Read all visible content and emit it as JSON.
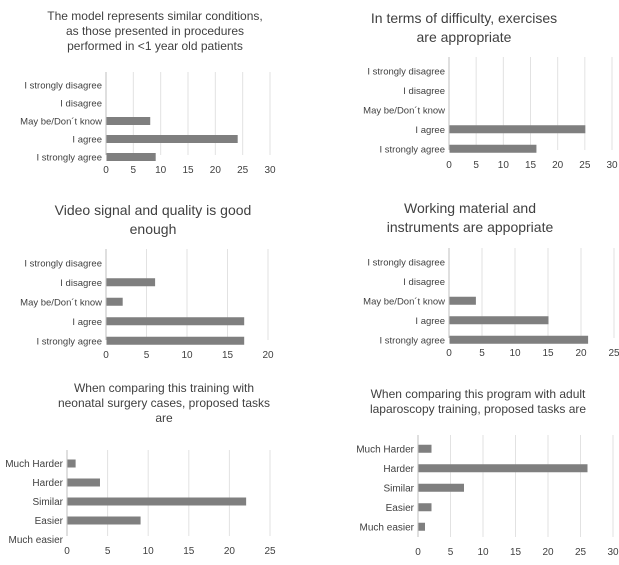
{
  "chart_data": [
    {
      "type": "bar",
      "orientation": "horizontal",
      "title": "The model represents similar conditions, as those presented in procedures performed in <1 year old patients",
      "title_lines": [
        "The model represents similar conditions,",
        "as those presented in procedures",
        "performed in <1 year old patients"
      ],
      "categories": [
        "I strongly disagree",
        "I disagree",
        "May be/Don´t know",
        "I agree",
        "I strongly agree"
      ],
      "values": [
        0,
        0,
        8,
        24,
        9
      ],
      "xlim": [
        0,
        30
      ],
      "xticks": [
        "0",
        "5",
        "10",
        "15",
        "20",
        "25",
        "30"
      ],
      "grid": true,
      "legend": "none",
      "bar_color": "#7f7f7f"
    },
    {
      "type": "bar",
      "orientation": "horizontal",
      "title": "In terms of difficulty, exercises are appropriate",
      "title_lines": [
        "In terms of difficulty, exercises",
        "are appropriate"
      ],
      "categories": [
        "I strongly disagree",
        "I disagree",
        "May be/Don´t know",
        "I agree",
        "I strongly agree"
      ],
      "values": [
        0,
        0,
        0,
        25,
        16
      ],
      "xlim": [
        0,
        30
      ],
      "xticks": [
        "0",
        "5",
        "10",
        "15",
        "20",
        "25",
        "30"
      ],
      "grid": true,
      "legend": "none",
      "bar_color": "#7f7f7f"
    },
    {
      "type": "bar",
      "orientation": "horizontal",
      "title": "Video signal and quality is good enough",
      "title_lines": [
        "Video signal and quality is good",
        "enough"
      ],
      "categories": [
        "I strongly disagree",
        "I disagree",
        "May be/Don´t know",
        "I agree",
        "I strongly agree"
      ],
      "values": [
        0,
        6,
        2,
        17,
        17
      ],
      "xlim": [
        0,
        20
      ],
      "xticks": [
        "0",
        "5",
        "10",
        "15",
        "20"
      ],
      "grid": true,
      "legend": "none",
      "bar_color": "#7f7f7f"
    },
    {
      "type": "bar",
      "orientation": "horizontal",
      "title": "Working material and instruments are appopriate",
      "title_lines": [
        "Working material and",
        "instruments are appopriate"
      ],
      "categories": [
        "I strongly disagree",
        "I disagree",
        "May be/Don´t know",
        "I agree",
        "I strongly agree"
      ],
      "values": [
        0,
        0,
        4,
        15,
        21
      ],
      "xlim": [
        0,
        25
      ],
      "xticks": [
        "0",
        "5",
        "10",
        "15",
        "20",
        "25"
      ],
      "grid": true,
      "legend": "none",
      "bar_color": "#7f7f7f"
    },
    {
      "type": "bar",
      "orientation": "horizontal",
      "title": "When comparing this training with neonatal surgery cases, proposed tasks are",
      "title_lines": [
        "When comparing this training with",
        "neonatal surgery cases, proposed tasks",
        "are"
      ],
      "categories": [
        "Much Harder",
        "Harder",
        "Similar",
        "Easier",
        "Much easier"
      ],
      "values": [
        1,
        4,
        22,
        9,
        0
      ],
      "xlim": [
        0,
        25
      ],
      "xticks": [
        "0",
        "5",
        "10",
        "15",
        "20",
        "25"
      ],
      "grid": true,
      "legend": "none",
      "bar_color": "#7f7f7f"
    },
    {
      "type": "bar",
      "orientation": "horizontal",
      "title": "When comparing this program with adult laparoscopy training, proposed tasks are",
      "title_lines": [
        "When comparing this program with adult",
        "laparoscopy training, proposed tasks are"
      ],
      "categories": [
        "Much Harder",
        "Harder",
        "Similar",
        "Easier",
        "Much easier"
      ],
      "values": [
        2,
        26,
        7,
        2,
        1
      ],
      "xlim": [
        0,
        30
      ],
      "xticks": [
        "0",
        "5",
        "10",
        "15",
        "20",
        "25",
        "30"
      ],
      "grid": true,
      "legend": "none",
      "bar_color": "#7f7f7f"
    }
  ]
}
